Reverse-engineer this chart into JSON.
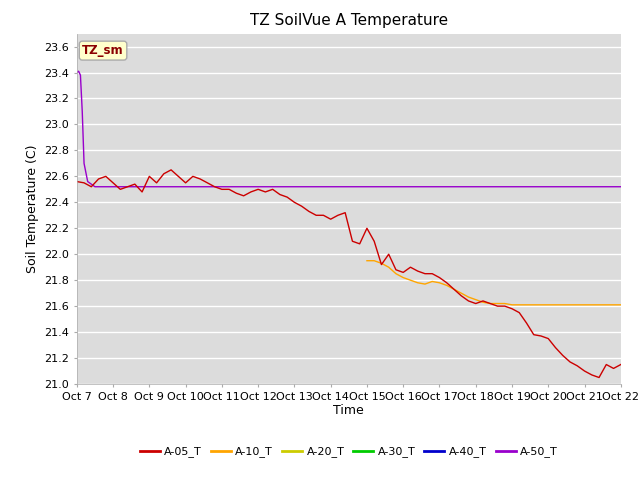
{
  "title": "TZ SoilVue A Temperature",
  "ylabel": "Soil Temperature (C)",
  "xlabel": "Time",
  "annotation_text": "TZ_sm",
  "annotation_bg": "#FFFFCC",
  "annotation_border": "#AAAAAA",
  "annotation_text_color": "#8B0000",
  "ylim": [
    21.0,
    23.7
  ],
  "xlim": [
    0,
    15
  ],
  "x_tick_labels": [
    "Oct 7",
    "Oct 8",
    "Oct 9",
    "Oct 10",
    "Oct 11",
    "Oct 12",
    "Oct 13",
    "Oct 14",
    "Oct 15",
    "Oct 16",
    "Oct 17",
    "Oct 18",
    "Oct 19",
    "Oct 20",
    "Oct 21",
    "Oct 22"
  ],
  "bg_color": "#DCDCDC",
  "plot_bg": "#DCDCDC",
  "grid_color": "#C8C8C8",
  "series": {
    "A-05_T": {
      "color": "#CC0000",
      "x": [
        0,
        0.2,
        0.4,
        0.6,
        0.8,
        1.0,
        1.2,
        1.4,
        1.6,
        1.8,
        2.0,
        2.2,
        2.4,
        2.6,
        2.8,
        3.0,
        3.2,
        3.4,
        3.6,
        3.8,
        4.0,
        4.2,
        4.4,
        4.6,
        4.8,
        5.0,
        5.2,
        5.4,
        5.6,
        5.8,
        6.0,
        6.2,
        6.4,
        6.6,
        6.8,
        7.0,
        7.2,
        7.4,
        7.6,
        7.8,
        8.0,
        8.2,
        8.4,
        8.6,
        8.8,
        9.0,
        9.2,
        9.4,
        9.6,
        9.8,
        10.0,
        10.2,
        10.4,
        10.6,
        10.8,
        11.0,
        11.2,
        11.4,
        11.6,
        11.8,
        12.0,
        12.2,
        12.4,
        12.6,
        12.8,
        13.0,
        13.2,
        13.4,
        13.6,
        13.8,
        14.0,
        14.2,
        14.4,
        14.6,
        14.8,
        15.0
      ],
      "y": [
        22.56,
        22.55,
        22.52,
        22.58,
        22.6,
        22.55,
        22.5,
        22.52,
        22.54,
        22.48,
        22.6,
        22.55,
        22.62,
        22.65,
        22.6,
        22.55,
        22.6,
        22.58,
        22.55,
        22.52,
        22.5,
        22.5,
        22.47,
        22.45,
        22.48,
        22.5,
        22.48,
        22.5,
        22.46,
        22.44,
        22.4,
        22.37,
        22.33,
        22.3,
        22.3,
        22.27,
        22.3,
        22.32,
        22.1,
        22.08,
        22.2,
        22.1,
        21.92,
        22.0,
        21.88,
        21.86,
        21.9,
        21.87,
        21.85,
        21.85,
        21.82,
        21.78,
        21.73,
        21.68,
        21.64,
        21.62,
        21.64,
        21.62,
        21.6,
        21.6,
        21.58,
        21.55,
        21.47,
        21.38,
        21.37,
        21.35,
        21.28,
        21.22,
        21.17,
        21.14,
        21.1,
        21.07,
        21.05,
        21.15,
        21.12,
        21.15
      ]
    },
    "A-10_T": {
      "color": "#FFA500",
      "x": [
        8.0,
        8.2,
        8.4,
        8.6,
        8.8,
        9.0,
        9.2,
        9.4,
        9.6,
        9.8,
        10.0,
        10.2,
        10.4,
        10.6,
        10.8,
        11.0,
        11.2,
        11.4,
        11.6,
        11.8,
        12.0,
        12.5,
        13.0,
        13.5,
        14.0,
        14.5,
        15.0
      ],
      "y": [
        21.95,
        21.95,
        21.93,
        21.9,
        21.85,
        21.82,
        21.8,
        21.78,
        21.77,
        21.79,
        21.78,
        21.76,
        21.73,
        21.7,
        21.67,
        21.65,
        21.63,
        21.62,
        21.62,
        21.62,
        21.61,
        21.61,
        21.61,
        21.61,
        21.61,
        21.61,
        21.61
      ]
    },
    "A-20_T": {
      "color": "#CCCC00",
      "x": [
        8.0,
        8.0
      ],
      "y": [
        22.5,
        22.5
      ]
    },
    "A-30_T": {
      "color": "#00CC00",
      "x": [],
      "y": []
    },
    "A-40_T": {
      "color": "#0000CC",
      "x": [],
      "y": []
    },
    "A-50_T": {
      "color": "#9900CC",
      "x": [
        0.0,
        0.05,
        0.1,
        0.15,
        0.2,
        0.3,
        0.5,
        1.0,
        2.0,
        3.0,
        4.0,
        5.0,
        6.0,
        7.0,
        8.0,
        9.0,
        10.0,
        11.0,
        12.0,
        13.0,
        14.0,
        15.0
      ],
      "y": [
        23.4,
        23.41,
        23.38,
        23.1,
        22.7,
        22.56,
        22.52,
        22.52,
        22.52,
        22.52,
        22.52,
        22.52,
        22.52,
        22.52,
        22.52,
        22.52,
        22.52,
        22.52,
        22.52,
        22.52,
        22.52,
        22.52
      ]
    }
  },
  "legend_entries": [
    {
      "label": "A-05_T",
      "color": "#CC0000"
    },
    {
      "label": "A-10_T",
      "color": "#FFA500"
    },
    {
      "label": "A-20_T",
      "color": "#CCCC00"
    },
    {
      "label": "A-30_T",
      "color": "#00CC00"
    },
    {
      "label": "A-40_T",
      "color": "#0000CC"
    },
    {
      "label": "A-50_T",
      "color": "#9900CC"
    }
  ],
  "figsize": [
    6.4,
    4.8
  ],
  "dpi": 100
}
